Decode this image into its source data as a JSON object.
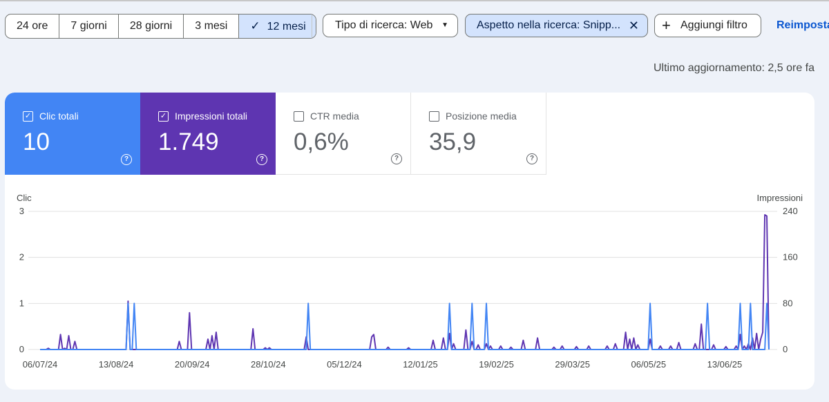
{
  "date_range": {
    "options": [
      {
        "label": "24 ore",
        "selected": false
      },
      {
        "label": "7 giorni",
        "selected": false
      },
      {
        "label": "28 giorni",
        "selected": false
      },
      {
        "label": "3 mesi",
        "selected": false
      },
      {
        "label": "12 mesi",
        "selected": true
      }
    ]
  },
  "filters": {
    "search_type": "Tipo di ricerca: Web",
    "search_appearance": "Aspetto nella ricerca: Snipp...",
    "add_filter": "Aggiungi filtro",
    "reset": "Reimposta"
  },
  "last_update": "Ultimo aggiornamento: 2,5 ore fa",
  "metrics": {
    "clicks": {
      "label": "Clic totali",
      "value": "10",
      "checked": true,
      "color": "#4285f4"
    },
    "impressions": {
      "label": "Impressioni totali",
      "value": "1.749",
      "checked": true,
      "color": "#5e35b1"
    },
    "ctr": {
      "label": "CTR media",
      "value": "0,6%",
      "checked": false
    },
    "position": {
      "label": "Posizione media",
      "value": "35,9",
      "checked": false
    }
  },
  "chart_data": {
    "type": "line",
    "left_axis_label": "Clic",
    "right_axis_label": "Impressioni",
    "left_ticks": [
      "0",
      "1",
      "2",
      "3"
    ],
    "right_ticks": [
      "0",
      "80",
      "160",
      "240"
    ],
    "x_tick_labels": [
      "06/07/24",
      "13/08/24",
      "20/09/24",
      "28/10/24",
      "05/12/24",
      "12/01/25",
      "19/02/25",
      "29/03/25",
      "06/05/25",
      "13/06/25"
    ],
    "x_start": "06/07/24",
    "y_left_range": [
      0,
      3
    ],
    "y_right_range": [
      0,
      240
    ],
    "days": 356,
    "series": [
      {
        "name": "Clic",
        "axis": "left",
        "color": "#4285f4",
        "points": [
          [
            0,
            0
          ],
          [
            43,
            1
          ],
          [
            46,
            1
          ],
          [
            131,
            1
          ],
          [
            200,
            1
          ],
          [
            211,
            1
          ],
          [
            218,
            1
          ],
          [
            298,
            1
          ],
          [
            326,
            1
          ],
          [
            342,
            1
          ],
          [
            347,
            1
          ],
          [
            355,
            1
          ]
        ]
      },
      {
        "name": "Impressioni",
        "axis": "right",
        "color": "#5e35b1",
        "points": [
          [
            0,
            0
          ],
          [
            4,
            2
          ],
          [
            10,
            26
          ],
          [
            12,
            2
          ],
          [
            14,
            24
          ],
          [
            17,
            14
          ],
          [
            43,
            84
          ],
          [
            68,
            14
          ],
          [
            73,
            64
          ],
          [
            82,
            18
          ],
          [
            84,
            24
          ],
          [
            86,
            30
          ],
          [
            104,
            36
          ],
          [
            110,
            3
          ],
          [
            112,
            3
          ],
          [
            130,
            22
          ],
          [
            162,
            22
          ],
          [
            163,
            26
          ],
          [
            170,
            4
          ],
          [
            180,
            3
          ],
          [
            192,
            16
          ],
          [
            197,
            20
          ],
          [
            200,
            28
          ],
          [
            202,
            10
          ],
          [
            208,
            34
          ],
          [
            211,
            14
          ],
          [
            214,
            8
          ],
          [
            218,
            10
          ],
          [
            220,
            6
          ],
          [
            225,
            6
          ],
          [
            230,
            4
          ],
          [
            236,
            16
          ],
          [
            243,
            20
          ],
          [
            251,
            4
          ],
          [
            255,
            6
          ],
          [
            262,
            5
          ],
          [
            268,
            6
          ],
          [
            277,
            6
          ],
          [
            281,
            10
          ],
          [
            286,
            30
          ],
          [
            288,
            18
          ],
          [
            290,
            20
          ],
          [
            292,
            8
          ],
          [
            298,
            18
          ],
          [
            303,
            6
          ],
          [
            308,
            6
          ],
          [
            312,
            12
          ],
          [
            320,
            10
          ],
          [
            323,
            44
          ],
          [
            329,
            8
          ],
          [
            335,
            5
          ],
          [
            340,
            6
          ],
          [
            342,
            26
          ],
          [
            344,
            6
          ],
          [
            346,
            10
          ],
          [
            348,
            20
          ],
          [
            350,
            28
          ],
          [
            352,
            18
          ],
          [
            353,
            30
          ],
          [
            354,
            234
          ],
          [
            355,
            232
          ]
        ]
      }
    ],
    "grid": true
  }
}
